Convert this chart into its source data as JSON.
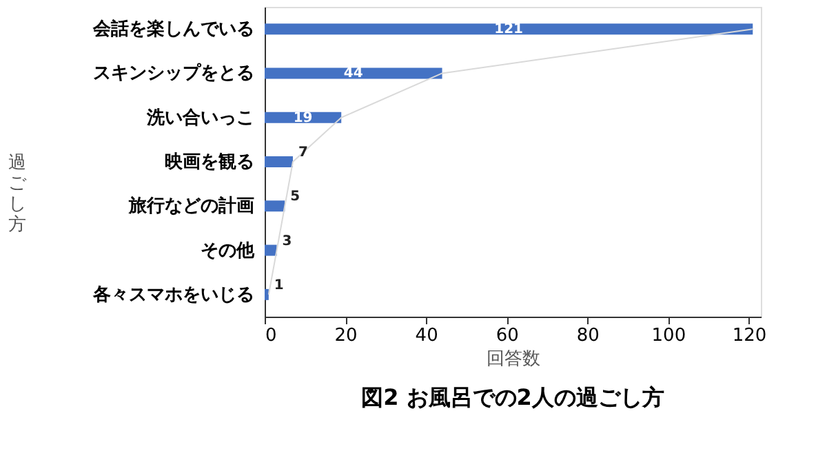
{
  "chart_data": {
    "type": "bar",
    "orientation": "horizontal",
    "title": "図2 お風呂での2人の過ごし方",
    "xlabel": "回答数",
    "ylabel": "過ごし方",
    "categories": [
      "会話を楽しんでいる",
      "スキンシップをとる",
      "洗い合いっこ",
      "映画を観る",
      "旅行などの計画",
      "その他",
      "各々スマホをいじる"
    ],
    "series": [
      {
        "type": "bar",
        "color": "#4472c4",
        "values": [
          121,
          44,
          19,
          7,
          5,
          3,
          1
        ],
        "value_labels": [
          "121",
          "44",
          "19",
          "7",
          "5",
          "3",
          "1"
        ]
      },
      {
        "type": "line",
        "color": "#d9d9d9",
        "values": [
          121,
          44,
          19,
          7,
          5,
          3,
          1
        ]
      }
    ],
    "xlim": [
      0,
      123
    ],
    "xticks": [
      0,
      20,
      40,
      60,
      80,
      100,
      120
    ],
    "grid": false
  }
}
